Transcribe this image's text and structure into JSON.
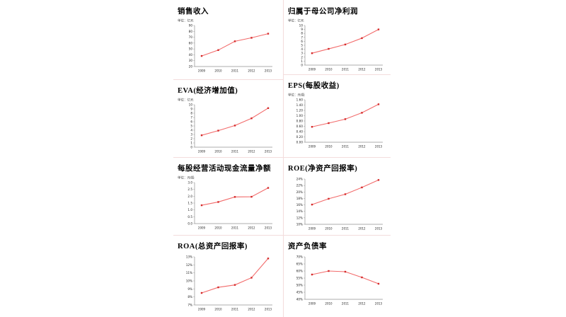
{
  "layout": {
    "background": "#ffffff",
    "grid_line_color": "#f3dcdc",
    "axis_color": "#909090",
    "tick_text_color": "#222222"
  },
  "chart_data": [
    {
      "type": "line",
      "title": "销售收入",
      "unit_label": "单位：亿元",
      "categories": [
        "2009",
        "2010",
        "2011",
        "2012",
        "2013"
      ],
      "values": [
        38,
        48,
        63,
        69,
        76
      ],
      "ylim": [
        20,
        90
      ],
      "ystep": 10,
      "tick_decimals": 0,
      "tick_suffix": "",
      "grid": false,
      "legend": false,
      "line_color": "#f26b6b",
      "marker_color": "#d42a2a"
    },
    {
      "type": "line",
      "title": "归属于母公司净利润",
      "unit_label": "单位：亿元",
      "categories": [
        "2009",
        "2010",
        "2011",
        "2012",
        "2013"
      ],
      "values": [
        3.0,
        4.1,
        5.2,
        6.8,
        9.0
      ],
      "ylim": [
        0,
        10
      ],
      "ystep": 1,
      "tick_decimals": 0,
      "tick_suffix": "",
      "grid": false,
      "legend": false,
      "line_color": "#f26b6b",
      "marker_color": "#d42a2a"
    },
    {
      "type": "line",
      "title": "EVA(经济增加值)",
      "unit_label": "单位：亿元",
      "categories": [
        "2009",
        "2010",
        "2011",
        "2012",
        "2013"
      ],
      "values": [
        2.8,
        3.9,
        5.1,
        6.8,
        9.2
      ],
      "ylim": [
        0,
        10
      ],
      "ystep": 1,
      "tick_decimals": 0,
      "tick_suffix": "",
      "grid": false,
      "legend": false,
      "line_color": "#f26b6b",
      "marker_color": "#d42a2a"
    },
    {
      "type": "line",
      "title": "EPS(每股收益)",
      "unit_label": "单位：元/股",
      "categories": [
        "2009",
        "2010",
        "2011",
        "2012",
        "2013"
      ],
      "values": [
        0.58,
        0.72,
        0.87,
        1.11,
        1.43
      ],
      "ylim": [
        0,
        1.6
      ],
      "ystep": 0.2,
      "tick_decimals": 2,
      "tick_suffix": "",
      "grid": false,
      "legend": false,
      "line_color": "#f26b6b",
      "marker_color": "#d42a2a"
    },
    {
      "type": "line",
      "title": "每股经营活动现金流量净额",
      "unit_label": "单位：元/股",
      "categories": [
        "2009",
        "2010",
        "2011",
        "2012",
        "2013"
      ],
      "values": [
        1.34,
        1.58,
        1.95,
        1.96,
        2.61
      ],
      "ylim": [
        0,
        3
      ],
      "ystep": 0.5,
      "tick_decimals": 1,
      "tick_suffix": "",
      "grid": false,
      "legend": false,
      "line_color": "#f26b6b",
      "marker_color": "#d42a2a"
    },
    {
      "type": "line",
      "title": "ROE(净资产回报率)",
      "unit_label": "",
      "categories": [
        "2009",
        "2010",
        "2011",
        "2012",
        "2013"
      ],
      "values": [
        16.1,
        17.9,
        19.3,
        21.4,
        23.7
      ],
      "ylim": [
        10,
        24
      ],
      "ystep": 2,
      "tick_decimals": 0,
      "tick_suffix": "%",
      "grid": false,
      "legend": false,
      "line_color": "#f26b6b",
      "marker_color": "#d42a2a"
    },
    {
      "type": "line",
      "title": "ROA(总资产回报率)",
      "unit_label": "",
      "categories": [
        "2009",
        "2010",
        "2011",
        "2012",
        "2013"
      ],
      "values": [
        8.5,
        9.2,
        9.5,
        10.4,
        12.8
      ],
      "ylim": [
        7,
        13
      ],
      "ystep": 1,
      "tick_decimals": 0,
      "tick_suffix": "%",
      "grid": false,
      "legend": false,
      "line_color": "#f26b6b",
      "marker_color": "#d42a2a"
    },
    {
      "type": "line",
      "title": "资产负债率",
      "unit_label": "",
      "categories": [
        "2009",
        "2010",
        "2011",
        "2012",
        "2013"
      ],
      "values": [
        57.5,
        60,
        59.5,
        55.5,
        51
      ],
      "ylim": [
        40,
        70
      ],
      "ystep": 5,
      "tick_decimals": 0,
      "tick_suffix": "%",
      "grid": false,
      "legend": false,
      "line_color": "#f26b6b",
      "marker_color": "#d42a2a"
    }
  ]
}
